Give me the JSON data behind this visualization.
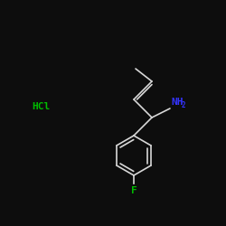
{
  "background_color": "#0d0d0d",
  "bond_color": "#d8d8d8",
  "NH2_color": "#3333ff",
  "HCl_color": "#00bb00",
  "F_color": "#00bb00",
  "bond_width": 1.2,
  "figsize": [
    2.5,
    2.5
  ],
  "dpi": 100,
  "HCl_label": "HCl",
  "F_label": "F",
  "NH2_label": "NH",
  "NH2_sub": "2"
}
